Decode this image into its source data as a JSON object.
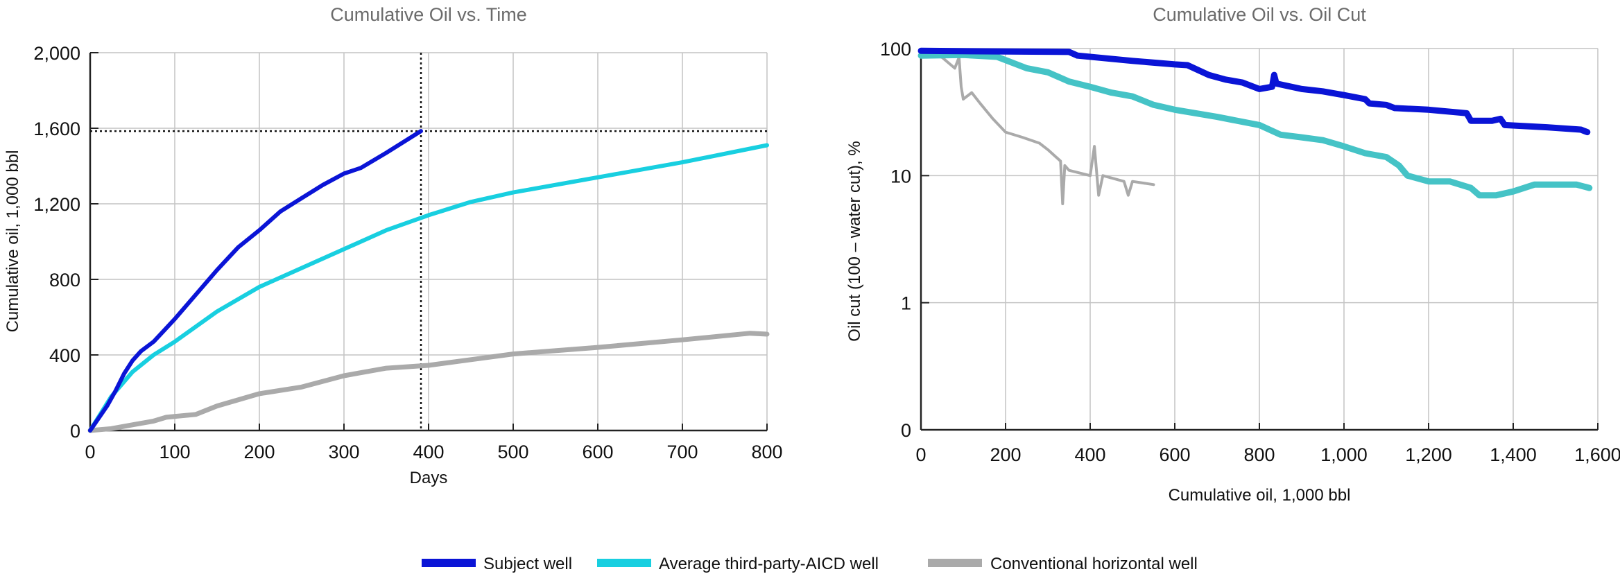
{
  "legend": {
    "position": "bottom-center",
    "items": [
      {
        "label": "Subject well",
        "color": "#0a14d6"
      },
      {
        "label": "Average third-party-AICD well",
        "color": "#18cfe0"
      },
      {
        "label": "Conventional horizontal well",
        "color": "#aaaaaa"
      }
    ]
  },
  "chart_data": [
    {
      "type": "line",
      "title": "Cumulative Oil vs. Time",
      "xlabel": "Days",
      "ylabel": "Cumulative oil, 1,000 bbl",
      "xlim": [
        0,
        800
      ],
      "ylim": [
        0,
        2000
      ],
      "xticks": [
        0,
        100,
        200,
        300,
        400,
        500,
        600,
        700,
        800
      ],
      "xtick_labels": [
        "0",
        "100",
        "200",
        "300",
        "400",
        "500",
        "600",
        "700",
        "800"
      ],
      "yticks": [
        0,
        400,
        800,
        1200,
        1600,
        2000
      ],
      "ytick_labels": [
        "0",
        "400",
        "800",
        "1,200",
        "1,600",
        "2,000"
      ],
      "grid": true,
      "reference_lines": {
        "x": 391,
        "y": 1585,
        "style": "dotted"
      },
      "series": [
        {
          "name": "Subject well",
          "color": "#0a14d6",
          "x": [
            0,
            20,
            30,
            40,
            50,
            60,
            75,
            100,
            125,
            150,
            175,
            200,
            225,
            250,
            275,
            300,
            320,
            350,
            391
          ],
          "y": [
            0,
            130,
            210,
            300,
            370,
            420,
            470,
            590,
            720,
            850,
            970,
            1060,
            1160,
            1230,
            1300,
            1360,
            1390,
            1470,
            1585
          ]
        },
        {
          "name": "Average third-party-AICD well",
          "color": "#18cfe0",
          "x": [
            0,
            25,
            50,
            75,
            100,
            150,
            200,
            250,
            300,
            350,
            400,
            450,
            500,
            600,
            700,
            800
          ],
          "y": [
            0,
            180,
            310,
            400,
            470,
            630,
            760,
            860,
            960,
            1060,
            1140,
            1210,
            1260,
            1340,
            1420,
            1510
          ]
        },
        {
          "name": "Conventional horizontal well",
          "color": "#aaaaaa",
          "x": [
            0,
            25,
            50,
            75,
            90,
            125,
            150,
            200,
            250,
            300,
            350,
            400,
            450,
            500,
            600,
            700,
            780,
            800
          ],
          "y": [
            0,
            10,
            30,
            50,
            70,
            85,
            130,
            195,
            230,
            290,
            330,
            345,
            375,
            405,
            440,
            480,
            515,
            510
          ]
        }
      ]
    },
    {
      "type": "line",
      "title": "Cumulative Oil vs. Oil Cut",
      "xlabel": "Cumulative oil, 1,000 bbl",
      "ylabel": "Oil cut (100 – water cut), %",
      "y_scale": "log",
      "xlim": [
        0,
        1600
      ],
      "ylim": [
        0,
        100
      ],
      "xticks": [
        0,
        200,
        400,
        600,
        800,
        1000,
        1200,
        1400,
        1600
      ],
      "xtick_labels": [
        "0",
        "200",
        "400",
        "600",
        "800",
        "1,000",
        "1,200",
        "1,400",
        "1,600"
      ],
      "yticks": [
        0,
        1,
        10,
        100
      ],
      "ytick_labels": [
        "0",
        "1",
        "10",
        "100"
      ],
      "grid": true,
      "series": [
        {
          "name": "Subject well",
          "color": "#0a14d6",
          "x": [
            0,
            350,
            370,
            500,
            600,
            630,
            680,
            720,
            760,
            800,
            830,
            835,
            840,
            900,
            950,
            1000,
            1050,
            1060,
            1100,
            1120,
            1200,
            1290,
            1300,
            1350,
            1370,
            1380,
            1480,
            1560,
            1575
          ],
          "y": [
            96,
            94,
            88,
            80,
            75,
            74,
            62,
            57,
            54,
            48,
            50,
            62,
            53,
            48,
            46,
            43,
            40,
            37,
            36,
            34,
            33,
            31,
            27,
            27,
            28,
            25,
            24,
            23,
            22
          ]
        },
        {
          "name": "Average third-party-AICD well",
          "color": "#45c3c6",
          "x": [
            0,
            100,
            180,
            250,
            300,
            350,
            400,
            450,
            500,
            550,
            600,
            700,
            800,
            850,
            900,
            950,
            1000,
            1050,
            1100,
            1130,
            1150,
            1200,
            1250,
            1300,
            1320,
            1360,
            1400,
            1450,
            1550,
            1580
          ],
          "y": [
            88,
            89,
            86,
            70,
            65,
            55,
            50,
            45,
            42,
            36,
            33,
            29,
            25,
            21,
            20,
            19,
            17,
            15,
            14,
            12,
            10,
            9,
            9,
            8,
            7,
            7,
            7.5,
            8.5,
            8.5,
            8
          ]
        },
        {
          "name": "Conventional horizontal well",
          "color": "#aaaaaa",
          "x": [
            30,
            50,
            80,
            90,
            95,
            100,
            120,
            140,
            170,
            200,
            240,
            280,
            300,
            330,
            335,
            340,
            350,
            400,
            410,
            420,
            430,
            480,
            490,
            500,
            550
          ],
          "y": [
            90,
            85,
            70,
            85,
            50,
            40,
            45,
            37,
            28,
            22,
            20,
            18,
            16,
            13,
            6,
            12,
            11,
            10,
            17,
            7,
            10,
            9,
            7,
            9,
            8.5
          ]
        }
      ]
    }
  ]
}
